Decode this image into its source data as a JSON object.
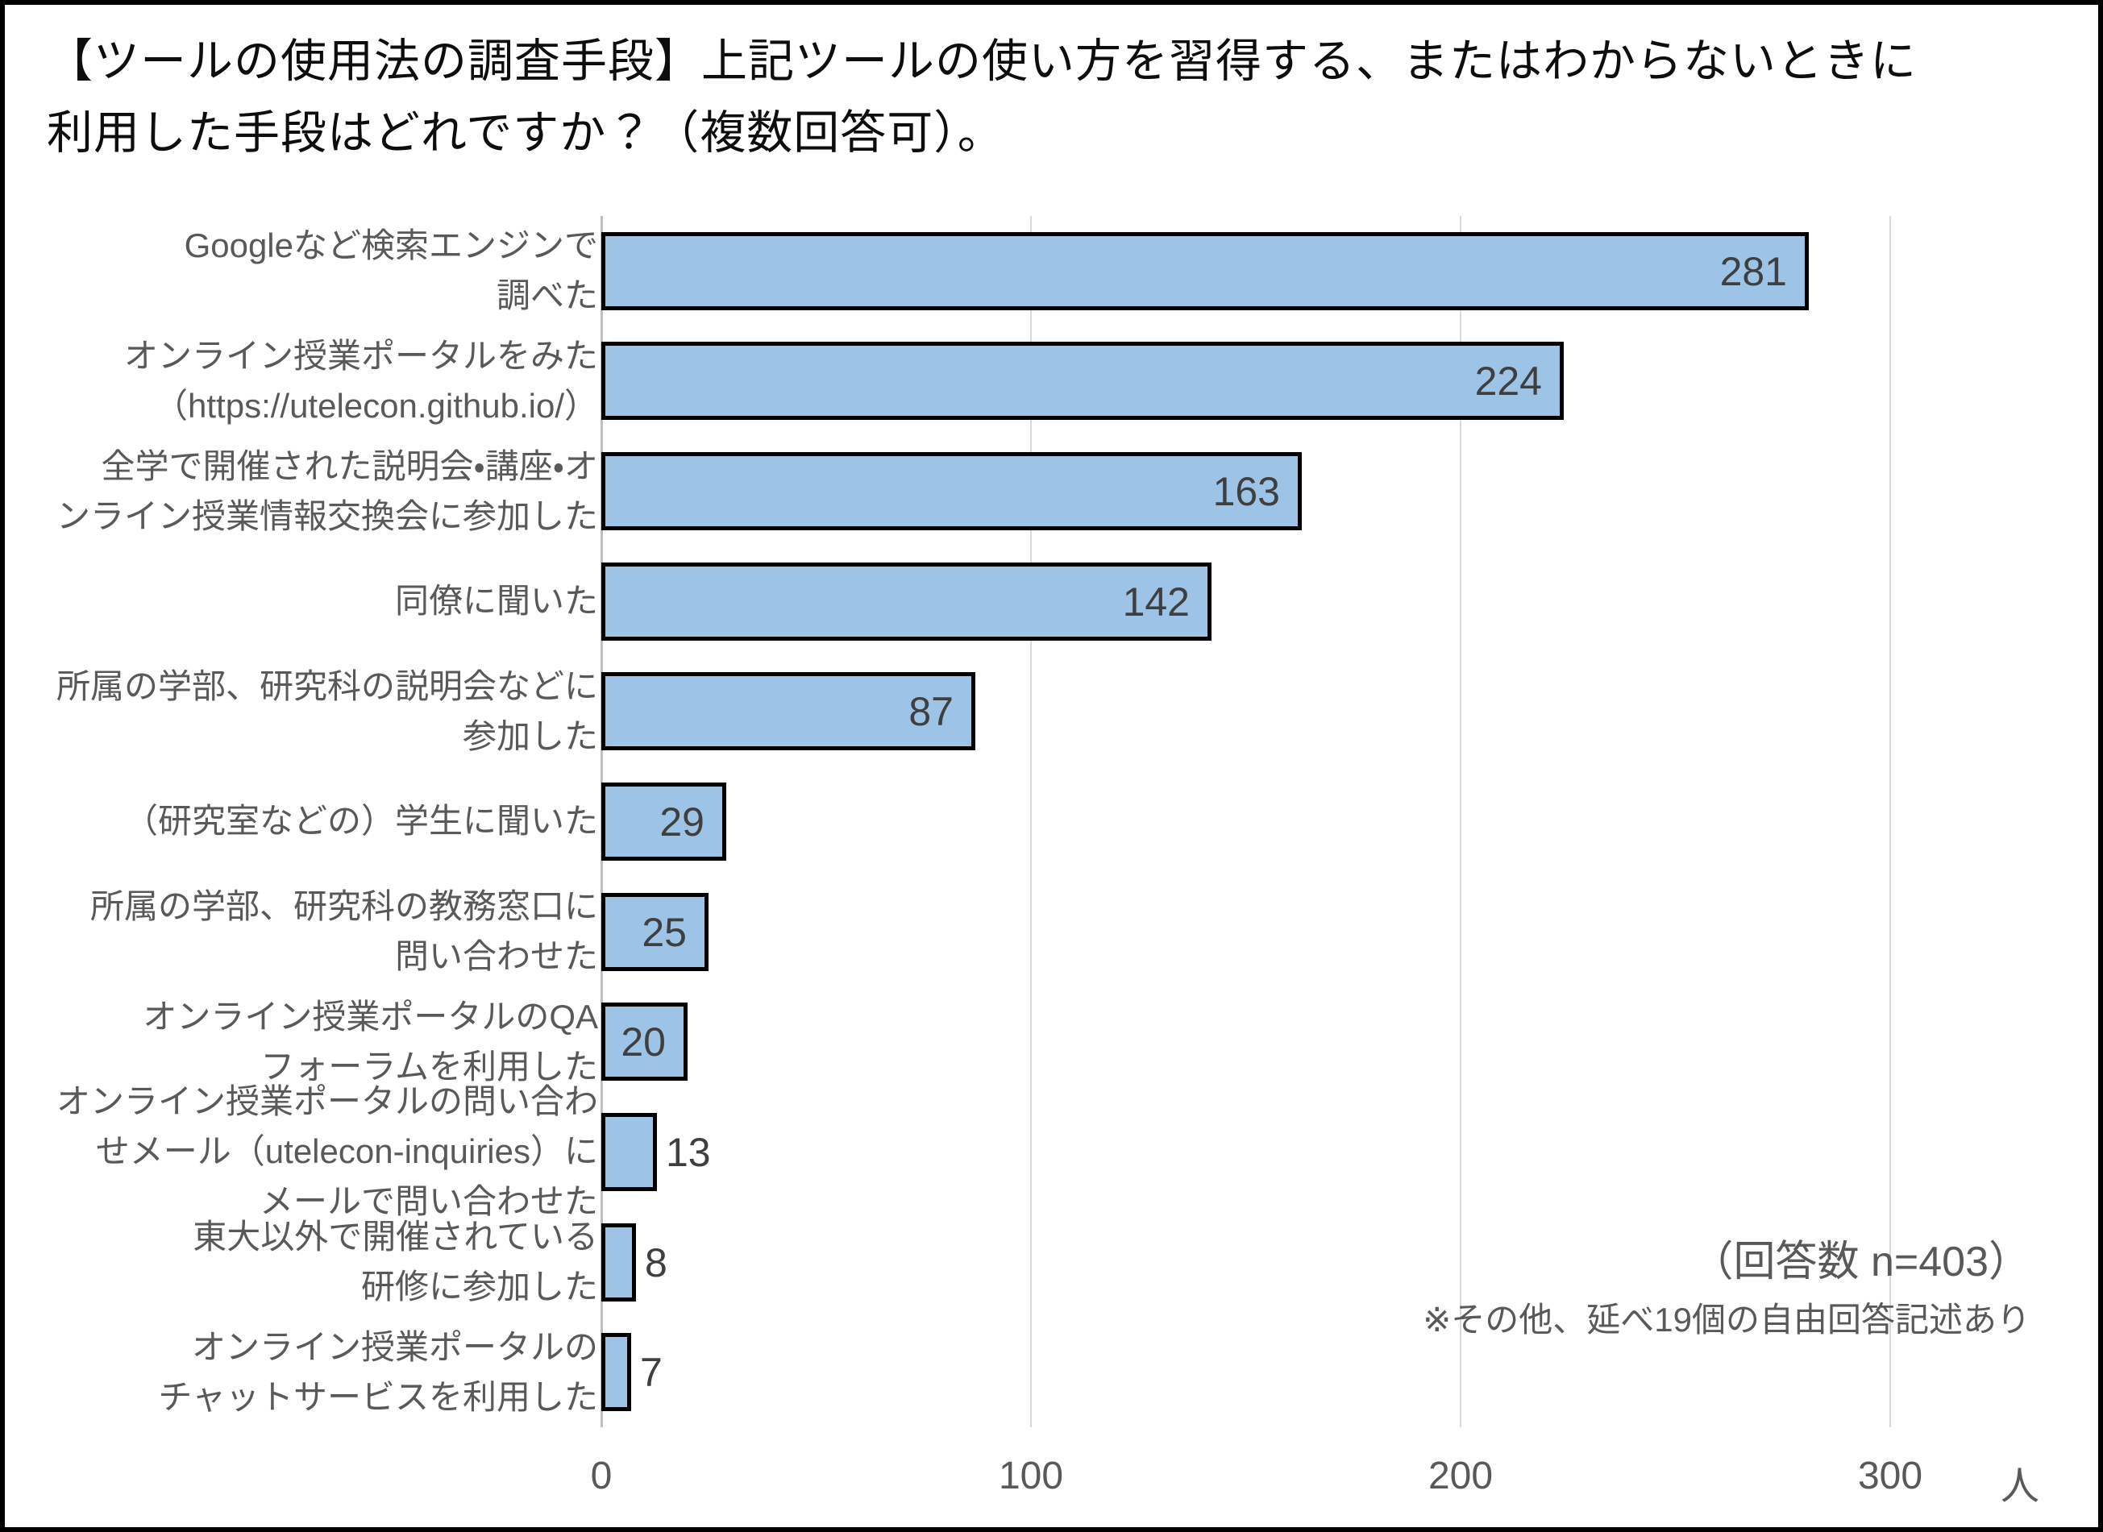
{
  "title": {
    "line1": "【ツールの使用法の調査手段】上記ツールの使い方を習得する、またはわからないときに",
    "line2": "利用した手段はどれですか？（複数回答可）。"
  },
  "colors": {
    "bar_fill": "#9dc3e6",
    "bar_border": "#000000",
    "gridline": "#d9d9d9",
    "axis_line": "#bfbfbf",
    "value_label": "#3f3f3f",
    "category_label": "#595959",
    "tick_label": "#595959",
    "title_text": "#0d0d0d"
  },
  "chart_data": {
    "type": "bar",
    "orientation": "horizontal",
    "title": "【ツールの使用法の調査手段】上記ツールの使い方を習得する、またはわからないときに利用した手段はどれですか？（複数回答可）。",
    "categories": [
      "Googleなど検索エンジンで調べた",
      "オンライン授業ポータルをみた（https://utelecon.github.io/）",
      "全学で開催された説明会・講座・オンライン授業情報交換会に参加した",
      "同僚に聞いた",
      "所属の学部、研究科の説明会などに参加した",
      "（研究室などの）学生に聞いた",
      "所属の学部、研究科の教務窓口に問い合わせた",
      "オンライン授業ポータルのQAフォーラムを利用した",
      "オンライン授業ポータルの問い合わせメール（utelecon-inquiries）にメールで問い合わせた",
      "東大以外で開催されている研修に参加した",
      "オンライン授業ポータルのチャットサービスを利用した"
    ],
    "category_lines": [
      [
        "Googleなど検索エンジンで",
        "調べた"
      ],
      [
        "オンライン授業ポータルをみた",
        "（https://utelecon.github.io/）"
      ],
      [
        "全学で開催された説明会・講座・オ",
        "ンライン授業情報交換会に参加した"
      ],
      [
        "同僚に聞いた"
      ],
      [
        "所属の学部、研究科の説明会などに",
        "参加した"
      ],
      [
        "（研究室などの）学生に聞いた"
      ],
      [
        "所属の学部、研究科の教務窓口に",
        "問い合わせた"
      ],
      [
        "オンライン授業ポータルのQA",
        "フォーラムを利用した"
      ],
      [
        "オンライン授業ポータルの問い合わ",
        "せメール（utelecon-inquiries）に",
        "メールで問い合わせた"
      ],
      [
        "東大以外で開催されている",
        "研修に参加した"
      ],
      [
        "オンライン授業ポータルの",
        "チャットサービスを利用した"
      ]
    ],
    "values": [
      281,
      224,
      163,
      142,
      87,
      29,
      25,
      20,
      13,
      8,
      7
    ],
    "x_ticks": [
      0,
      100,
      200,
      300
    ],
    "x_unit": "人",
    "xlim": [
      0,
      320
    ],
    "ylim": null,
    "grid": "vertical",
    "legend": "none",
    "annotations": [
      "（回答数 n=403）",
      "※その他、延べ19個の自由回答記述あり"
    ]
  }
}
